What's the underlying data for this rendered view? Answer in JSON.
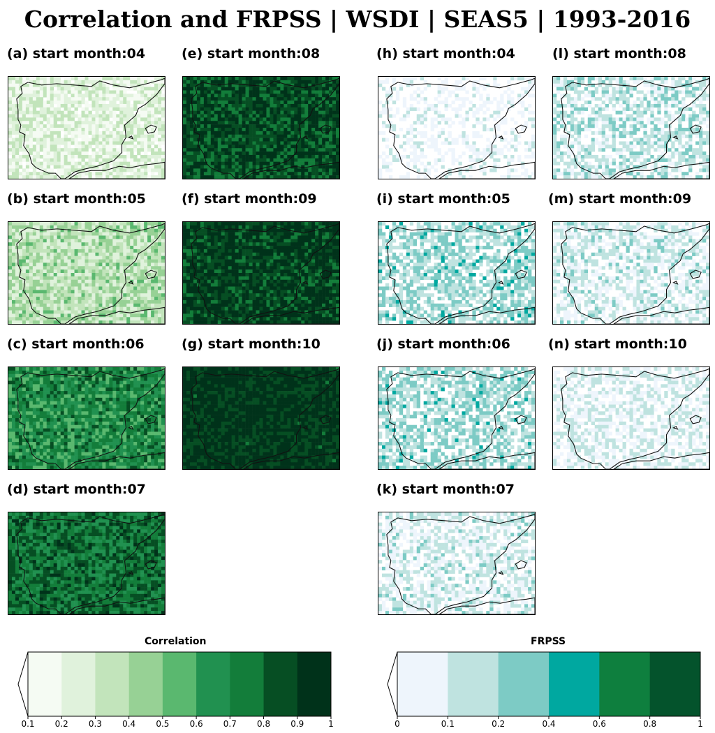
{
  "title": "Correlation and FRPSS | WSDI | SEAS5 | 1993-2016",
  "panels": [
    {
      "label": "(a) start month:04",
      "variable": "correlation",
      "level": 0.15
    },
    {
      "label": "(b) start month:05",
      "variable": "correlation",
      "level": 0.3
    },
    {
      "label": "(c) start month:06",
      "variable": "correlation",
      "level": 0.65
    },
    {
      "label": "(d) start month:07",
      "variable": "correlation",
      "level": 0.75
    },
    {
      "label": "(e) start month:08",
      "variable": "correlation",
      "level": 0.85
    },
    {
      "label": "(f) start month:09",
      "variable": "correlation",
      "level": 0.9
    },
    {
      "label": "(g) start month:10",
      "variable": "correlation",
      "level": 0.95
    },
    {
      "label": "(h) start month:04",
      "variable": "frpss",
      "level": 0.05
    },
    {
      "label": "(i) start month:05",
      "variable": "frpss",
      "level": 0.35
    },
    {
      "label": "(j) start month:06",
      "variable": "frpss",
      "level": 0.35
    },
    {
      "label": "(k) start month:07",
      "variable": "frpss",
      "level": 0.2
    },
    {
      "label": "(l) start month:08",
      "variable": "frpss",
      "level": 0.25
    },
    {
      "label": "(m) start month:09",
      "variable": "frpss",
      "level": 0.2
    },
    {
      "label": "(n) start month:10",
      "variable": "frpss",
      "level": 0.15
    }
  ],
  "colorbars": {
    "correlation": {
      "title": "Correlation",
      "ticks": [
        "0.1",
        "0.2",
        "0.3",
        "0.4",
        "0.5",
        "0.6",
        "0.7",
        "0.8",
        "0.9",
        "1"
      ],
      "colors": [
        "#f5fbf3",
        "#e0f2dc",
        "#c2e4bb",
        "#97d195",
        "#5ab86f",
        "#219150",
        "#137d3a",
        "#064e23",
        "#00321a"
      ],
      "extend": "min"
    },
    "frpss": {
      "title": "FRPSS",
      "ticks": [
        "0",
        "0.1",
        "0.2",
        "0.4",
        "0.6",
        "0.8",
        "1"
      ],
      "colors": [
        "#eef5fc",
        "#bfe3e0",
        "#7dcbc5",
        "#00a8a0",
        "#0e7f3e",
        "#04532c"
      ],
      "extend": "min"
    }
  }
}
